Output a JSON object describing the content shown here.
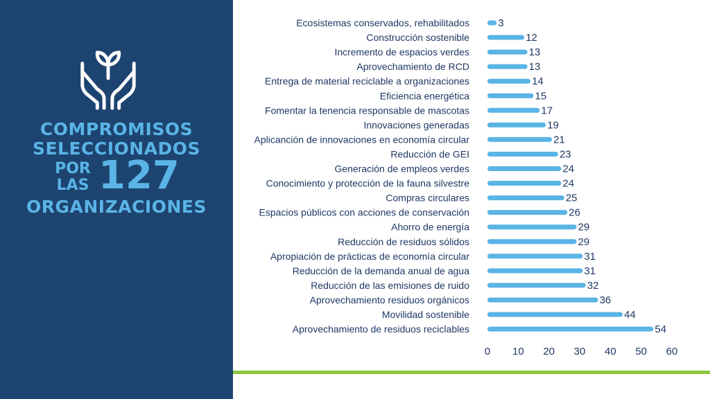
{
  "panel": {
    "line1": "COMPROMISOS",
    "line2": "SELECCIONADOS",
    "por": "POR",
    "las": "LAS",
    "number": "127",
    "line4": "ORGANIZACIONES",
    "icon": "hands-plant-icon",
    "background_color": "#1d4470",
    "text_color": "#5ab4e6"
  },
  "accent_line_color": "#8cc63f",
  "chart_data": {
    "type": "bar",
    "orientation": "horizontal",
    "categories": [
      "Ecosistemas conservados, rehabilitados",
      "Construcción sostenible",
      "Incremento de espacios verdes",
      "Aprovechamiento de RCD",
      "Entrega de material reciclable a organizaciones",
      "Eficiencia energética",
      "Fomentar la tenencia responsable de mascotas",
      "Innovaciones generadas",
      "Aplicanción de innovaciones en economía circular",
      "Reducción de GEI",
      "Generación de empleos verdes",
      "Conocimiento y protección de la fauna silvestre",
      "Compras circulares",
      "Espacios públicos con acciones de conservación",
      "Ahorro de energía",
      "Reducción de residuos sólidos",
      "Apropiación de prácticas de economía circular",
      "Reducción de la demanda anual de agua",
      "Reducción de las emisiones de ruido",
      "Aprovechamiento residuos orgánicos",
      "Movilidad sostenible",
      "Aprovechamiento de residuos reciclables"
    ],
    "values": [
      3,
      12,
      13,
      13,
      14,
      15,
      17,
      19,
      21,
      23,
      24,
      24,
      25,
      26,
      29,
      29,
      31,
      31,
      32,
      36,
      44,
      54
    ],
    "xlim": [
      0,
      60
    ],
    "xticks": [
      "0",
      "10",
      "20",
      "30",
      "40",
      "50",
      "60"
    ],
    "bar_color": "#5ab4e6",
    "grid": false,
    "legend": "none"
  }
}
